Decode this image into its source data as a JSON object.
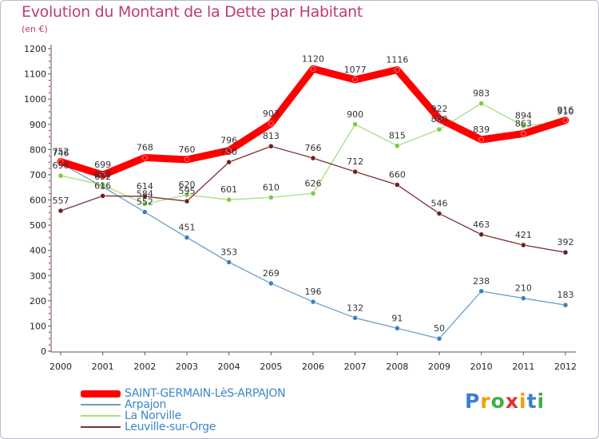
{
  "chart_data": {
    "type": "line",
    "title": "Evolution du Montant de la Dette par Habitant",
    "subtitle": "(en €)",
    "x": [
      "2000",
      "2001",
      "2002",
      "2003",
      "2004",
      "2005",
      "2006",
      "2007",
      "2008",
      "2009",
      "2010",
      "2011",
      "2012"
    ],
    "ylim": [
      0,
      1200
    ],
    "yticks": [
      0,
      100,
      200,
      300,
      400,
      500,
      600,
      700,
      800,
      900,
      1000,
      1100,
      1200
    ],
    "grid": false,
    "legend_position": "bottom-left",
    "series": [
      {
        "name": "SAINT-GERMAIN-LèS-ARPAJON",
        "color": "#ff0000",
        "marker": "#ff0000",
        "values": [
          752,
          699,
          768,
          760,
          796,
          903,
          1120,
          1077,
          1116,
          922,
          839,
          863,
          916
        ]
      },
      {
        "name": "Arpajon",
        "color": "#6c9ec9",
        "marker": "#3e7fbf",
        "values": [
          746,
          652,
          552,
          451,
          353,
          269,
          196,
          132,
          91,
          50,
          238,
          210,
          183
        ]
      },
      {
        "name": "La Norville",
        "color": "#a6e07a",
        "marker": "#7acb3e",
        "values": [
          696,
          660,
          584,
          620,
          601,
          610,
          626,
          900,
          815,
          880,
          983,
          894,
          910
        ]
      },
      {
        "name": "Leuville-sur-Orge",
        "color": "#7a3232",
        "marker": "#6a2121",
        "values": [
          557,
          616,
          614,
          595,
          750,
          813,
          766,
          712,
          660,
          546,
          463,
          421,
          392
        ]
      }
    ]
  },
  "legend": [
    {
      "label": "SAINT-GERMAIN-LèS-ARPAJON"
    },
    {
      "label": "Arpajon"
    },
    {
      "label": "La Norville"
    },
    {
      "label": "Leuville-sur-Orge"
    }
  ],
  "logo": {
    "letters": [
      "P",
      "r",
      "o",
      "x",
      "i",
      "t",
      "i"
    ],
    "colors": [
      "#3a7fd0",
      "#f0a000",
      "#3cb043",
      "#e03030",
      "#f0a000",
      "#3a7fd0",
      "#3cb043"
    ]
  }
}
